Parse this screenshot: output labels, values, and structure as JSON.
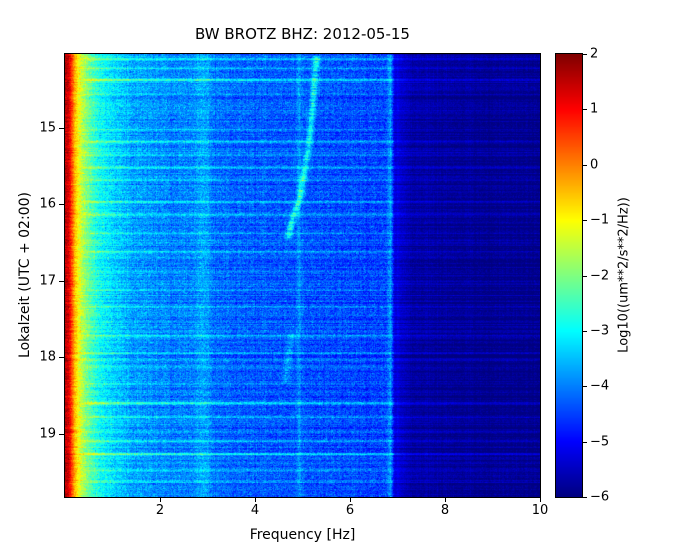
{
  "chart_data": {
    "type": "heatmap",
    "subtype": "spectrogram",
    "title": "BW BROTZ BHZ: 2012-05-15",
    "xlabel": "Frequency [Hz]",
    "ylabel": "Lokalzeit (UTC + 02:00)",
    "xlim": [
      0,
      10
    ],
    "x_ticks": [
      2,
      4,
      6,
      8,
      10
    ],
    "time_axis": {
      "start_hour": 14.03,
      "end_hour": 19.83,
      "ticks": [
        15,
        16,
        17,
        18,
        19
      ],
      "direction": "down"
    },
    "colorbar": {
      "label": "Log10((um**2/s**2/Hz))",
      "range": [
        -6,
        2
      ],
      "tick_values": [
        2,
        1,
        0,
        -1,
        -2,
        -3,
        -4,
        -5,
        -6
      ],
      "tick_labels": [
        "2",
        "1",
        "0",
        "−1",
        "−2",
        "−3",
        "−4",
        "−5",
        "−6"
      ],
      "colormap": "jet"
    },
    "base_spectrum": {
      "freqs": [
        0.0,
        0.08,
        0.15,
        0.22,
        0.3,
        0.45,
        0.65,
        0.9,
        1.4,
        2.2,
        3.0,
        4.0,
        5.0,
        6.0,
        6.6,
        6.85,
        6.95,
        7.3,
        8.5,
        10.0
      ],
      "values": [
        1.6,
        1.3,
        0.3,
        -0.6,
        -1.2,
        -2.0,
        -2.7,
        -3.2,
        -3.7,
        -4.0,
        -4.15,
        -4.3,
        -4.35,
        -4.45,
        -4.5,
        -4.4,
        -5.3,
        -5.7,
        -5.85,
        -5.9
      ]
    },
    "noise_std": 0.28,
    "row_noise_std": 0.14,
    "streaks": [
      {
        "t": 14.1,
        "amp": 0.9
      },
      {
        "t": 14.22,
        "amp": 0.7
      },
      {
        "t": 14.37,
        "amp": 1.5
      },
      {
        "t": 14.55,
        "amp": 0.6
      },
      {
        "t": 15.02,
        "amp": 0.8
      },
      {
        "t": 15.18,
        "amp": 1.1
      },
      {
        "t": 15.35,
        "amp": 0.6
      },
      {
        "t": 15.52,
        "amp": 0.9
      },
      {
        "t": 15.68,
        "amp": 0.7
      },
      {
        "t": 15.97,
        "amp": 1.0
      },
      {
        "t": 16.14,
        "amp": 0.8
      },
      {
        "t": 16.38,
        "amp": 0.7
      },
      {
        "t": 16.62,
        "amp": 0.9
      },
      {
        "t": 16.88,
        "amp": 0.6
      },
      {
        "t": 17.12,
        "amp": 0.8
      },
      {
        "t": 17.34,
        "amp": 0.6
      },
      {
        "t": 17.72,
        "amp": 0.8
      },
      {
        "t": 17.95,
        "amp": 0.6
      },
      {
        "t": 18.12,
        "amp": 0.7
      },
      {
        "t": 18.35,
        "amp": 0.6
      },
      {
        "t": 18.6,
        "amp": 1.4
      },
      {
        "t": 18.78,
        "amp": 0.8
      },
      {
        "t": 19.1,
        "amp": 0.9
      },
      {
        "t": 19.27,
        "amp": 1.3
      },
      {
        "t": 19.48,
        "amp": 0.7
      },
      {
        "t": 19.63,
        "amp": 0.8
      }
    ],
    "vertical_lines": [
      {
        "f": 2.9,
        "width": 0.18,
        "amp": 0.45
      },
      {
        "f": 4.93,
        "width": 0.05,
        "amp": 0.5
      },
      {
        "f": 6.85,
        "width": 0.05,
        "amp": 0.6
      }
    ],
    "glides": [
      {
        "t": [
          14.05,
          14.7,
          15.3,
          15.9,
          16.2,
          16.45
        ],
        "f": [
          5.3,
          5.22,
          5.12,
          4.95,
          4.78,
          4.7
        ],
        "amp": 1.3,
        "width": 0.07
      },
      {
        "t": [
          17.7,
          18.0,
          18.35
        ],
        "f": [
          4.78,
          4.7,
          4.62
        ],
        "amp": 0.55,
        "width": 0.08
      }
    ]
  }
}
